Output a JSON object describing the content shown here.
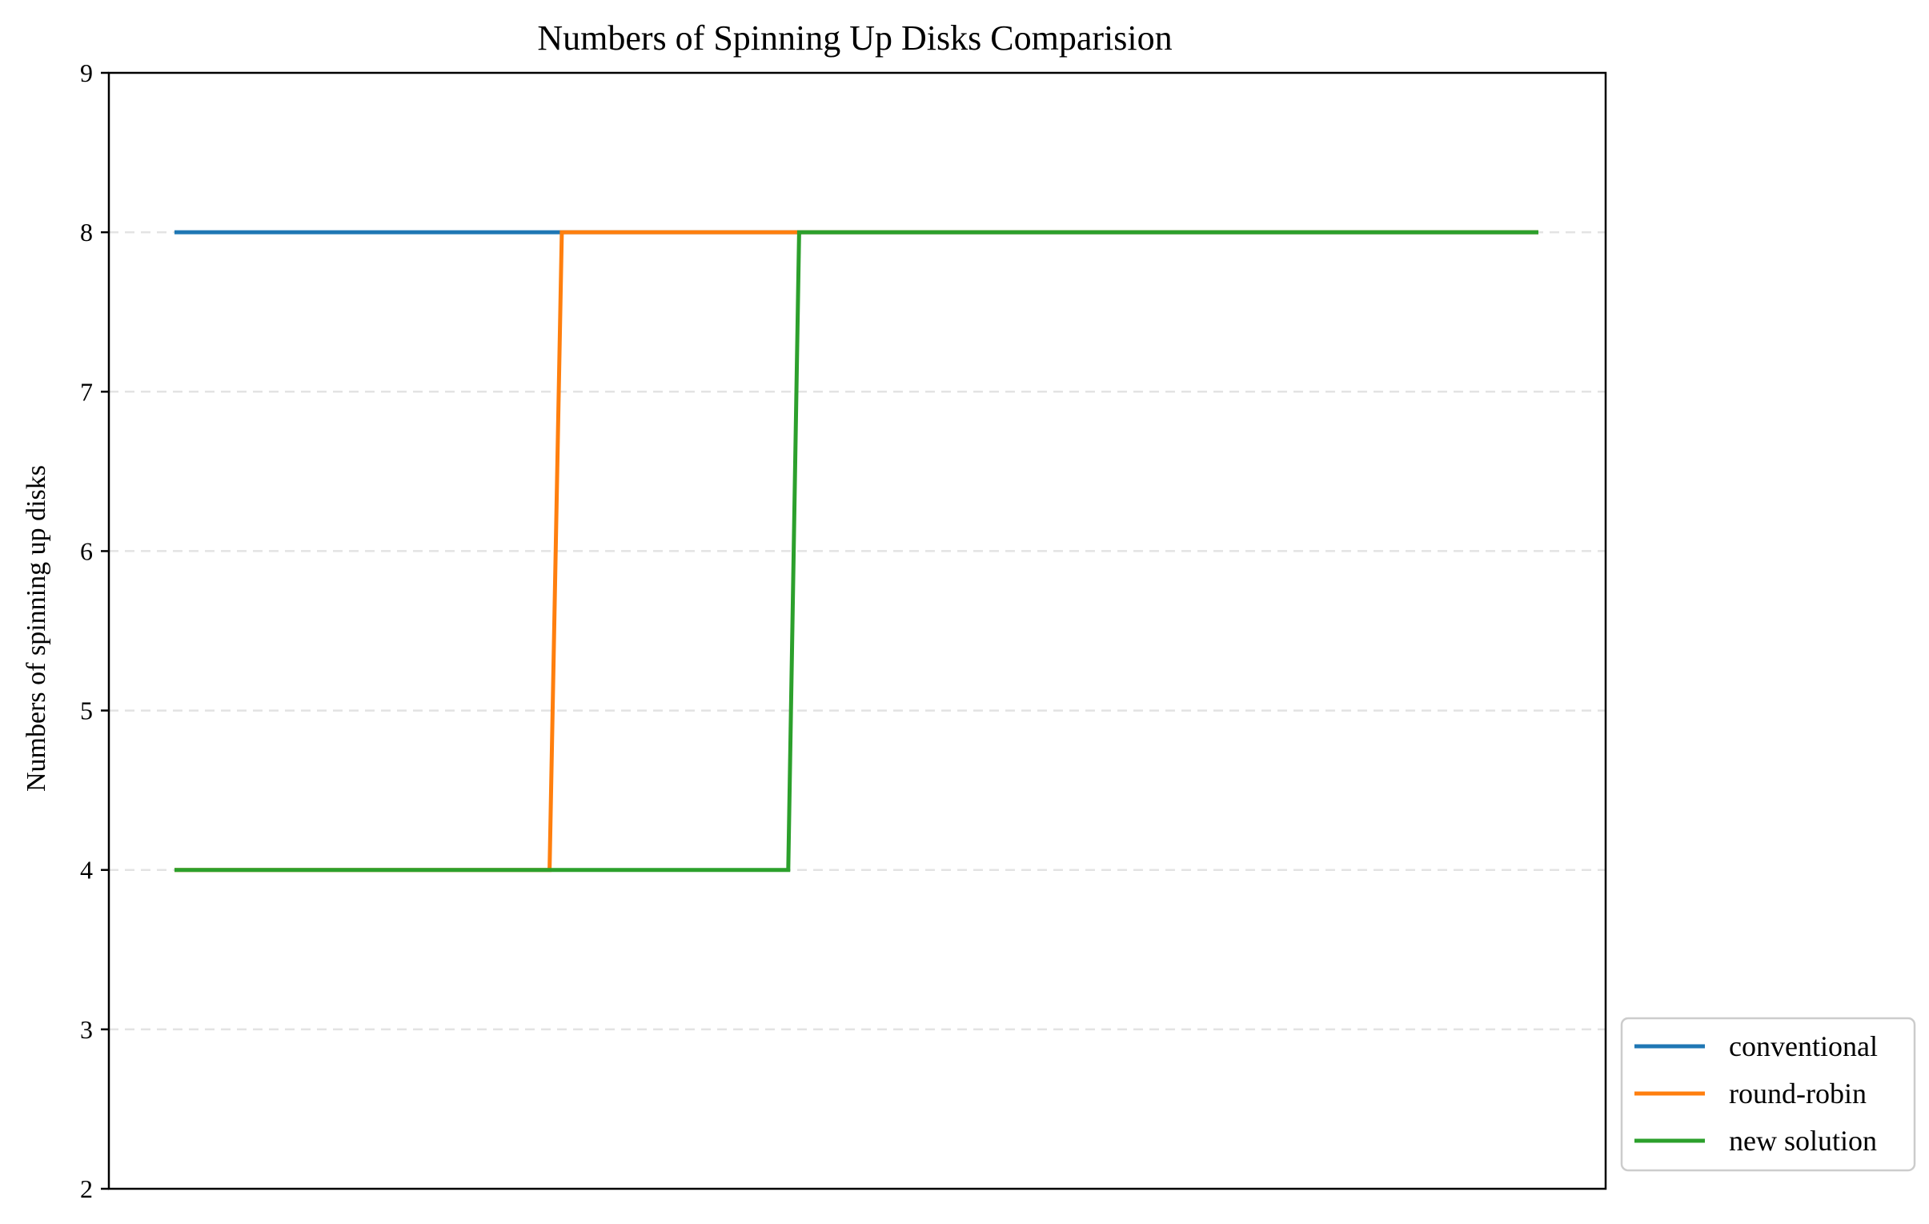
{
  "chart_data": {
    "type": "line",
    "title": "Numbers of Spinning Up Disks Comparision",
    "xlabel": "",
    "ylabel": "Numbers of spinning up disks",
    "xlim": [
      0,
      100
    ],
    "ylim": [
      2,
      9
    ],
    "yticks": [
      2,
      3,
      4,
      5,
      6,
      7,
      8,
      9
    ],
    "xticks_visible": false,
    "grid": "y-dashed",
    "legend_position": "lower-right-outside",
    "series": [
      {
        "name": "conventional",
        "color": "#1f77b4",
        "x": [
          0,
          100
        ],
        "y": [
          8,
          8
        ]
      },
      {
        "name": "round-robin",
        "color": "#ff7f0e",
        "x": [
          0,
          27.5,
          28.4,
          100
        ],
        "y": [
          4,
          4,
          8,
          8
        ]
      },
      {
        "name": "new solution",
        "color": "#2ca02c",
        "x": [
          0,
          45.0,
          45.8,
          100
        ],
        "y": [
          4,
          4,
          8,
          8
        ]
      }
    ]
  }
}
